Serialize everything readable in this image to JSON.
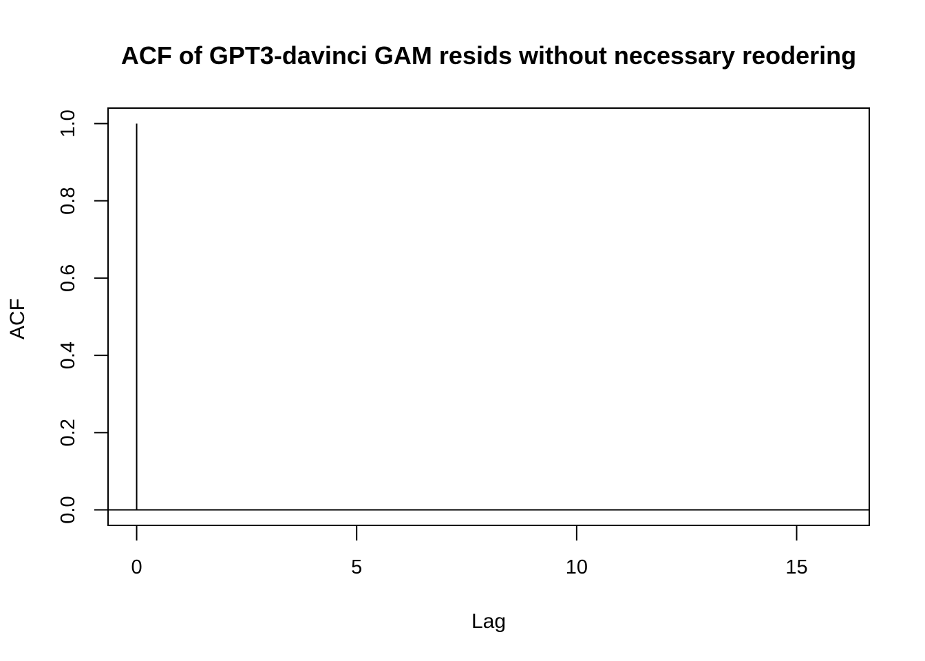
{
  "chart_data": {
    "type": "bar",
    "title": "ACF of GPT3-davinci GAM resids without necessary reodering",
    "xlabel": "Lag",
    "ylabel": "ACF",
    "xlim": [
      -0.65,
      16.65
    ],
    "ylim": [
      -0.04,
      1.04
    ],
    "x_ticks": [
      0,
      5,
      10,
      15
    ],
    "x_tick_labels": [
      "0",
      "5",
      "10",
      "15"
    ],
    "y_ticks": [
      0.0,
      0.2,
      0.4,
      0.6,
      0.8,
      1.0
    ],
    "y_tick_labels": [
      "0.0",
      "0.2",
      "0.4",
      "0.6",
      "0.8",
      "1.0"
    ],
    "lags": [
      0
    ],
    "values": [
      1.0
    ],
    "zero_line": true,
    "grid": false,
    "legend": "none"
  }
}
